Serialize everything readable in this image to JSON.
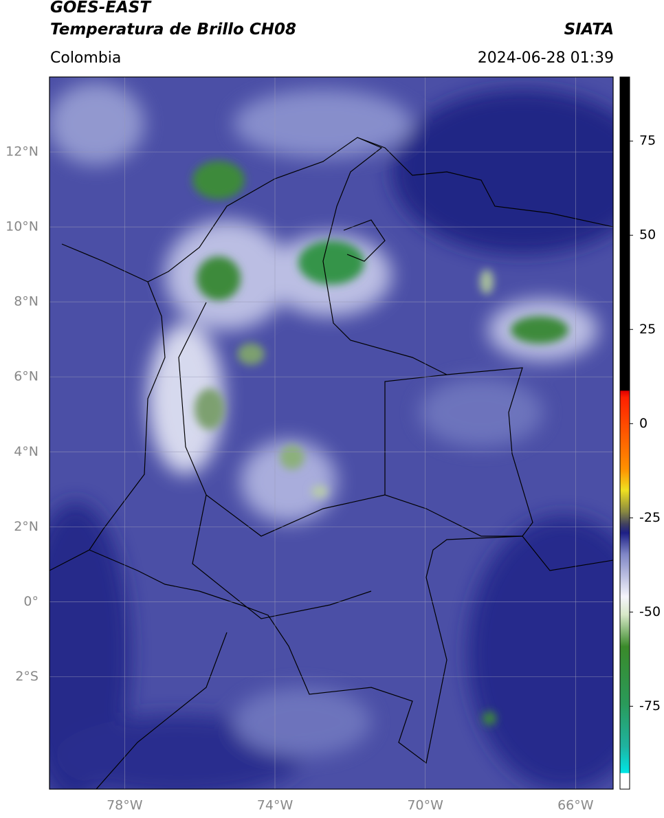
{
  "header": {
    "title": "GOES-EAST",
    "subtitle": "Temperatura de Brillo CH08",
    "region": "Colombia",
    "source": "SIATA",
    "timestamp": "2024-06-28 01:39"
  },
  "map": {
    "xlim": [
      -80,
      -65
    ],
    "ylim": [
      -5,
      14
    ],
    "lat_ticks": [
      {
        "value": 12,
        "label": "12°N"
      },
      {
        "value": 10,
        "label": "10°N"
      },
      {
        "value": 8,
        "label": "8°N"
      },
      {
        "value": 6,
        "label": "6°N"
      },
      {
        "value": 4,
        "label": "4°N"
      },
      {
        "value": 2,
        "label": "2°N"
      },
      {
        "value": 0,
        "label": "0°"
      },
      {
        "value": -2,
        "label": "2°S"
      }
    ],
    "lon_ticks": [
      {
        "value": -78,
        "label": "78°W"
      },
      {
        "value": -74,
        "label": "74°W"
      },
      {
        "value": -70,
        "label": "70°W"
      },
      {
        "value": -66,
        "label": "66°W"
      }
    ]
  },
  "colorbar": {
    "clim": [
      -97,
      92
    ],
    "ticks": [
      75,
      50,
      25,
      0,
      -25,
      -50,
      -75
    ]
  }
}
